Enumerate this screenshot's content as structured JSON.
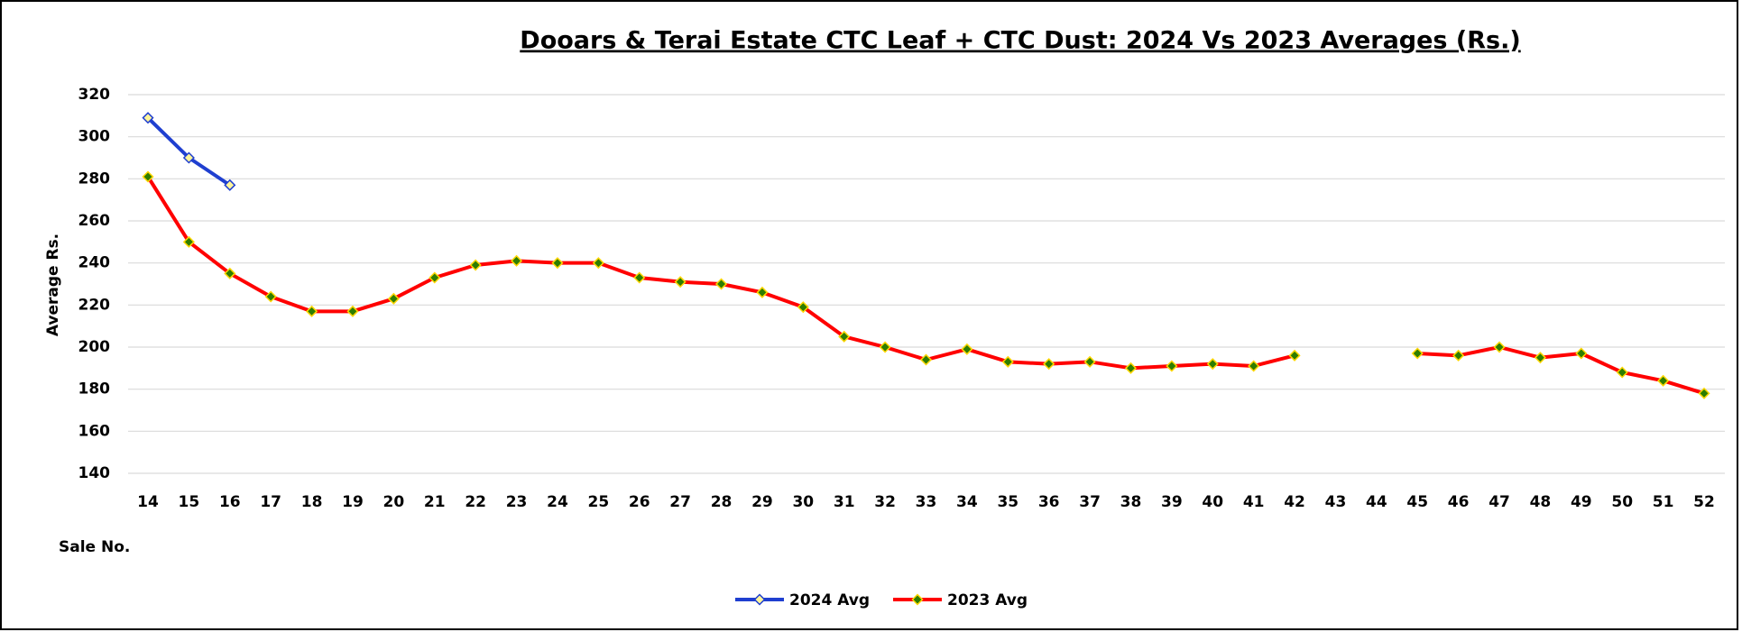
{
  "chart_data": {
    "type": "line",
    "title": "Dooars & Terai Estate CTC Leaf + CTC Dust: 2024 Vs 2023 Averages (Rs.)",
    "y_label": "Average Rs.",
    "x_label": "Sale No.",
    "categories": [
      14,
      15,
      16,
      17,
      18,
      19,
      20,
      21,
      22,
      23,
      24,
      25,
      26,
      27,
      28,
      29,
      30,
      31,
      32,
      33,
      34,
      35,
      36,
      37,
      38,
      39,
      40,
      41,
      42,
      43,
      44,
      45,
      46,
      47,
      48,
      49,
      50,
      51,
      52
    ],
    "series": [
      {
        "name": "2024 Avg",
        "color": "#1f3fd0",
        "values": [
          309,
          290,
          277,
          null,
          null,
          null,
          null,
          null,
          null,
          null,
          null,
          null,
          null,
          null,
          null,
          null,
          null,
          null,
          null,
          null,
          null,
          null,
          null,
          null,
          null,
          null,
          null,
          null,
          null,
          null,
          null,
          null,
          null,
          null,
          null,
          null,
          null,
          null,
          null
        ]
      },
      {
        "name": "2023 Avg",
        "color": "#ff0000",
        "values": [
          281,
          250,
          235,
          224,
          217,
          217,
          223,
          233,
          239,
          241,
          240,
          240,
          233,
          231,
          230,
          226,
          219,
          205,
          200,
          194,
          199,
          193,
          192,
          193,
          190,
          191,
          192,
          191,
          196,
          null,
          null,
          197,
          196,
          200,
          195,
          197,
          188,
          184,
          178
        ]
      }
    ],
    "ylim": [
      140,
      320
    ],
    "yticks": [
      140,
      160,
      180,
      200,
      220,
      240,
      260,
      280,
      300,
      320
    ],
    "grid": true,
    "legend": "bottom"
  }
}
